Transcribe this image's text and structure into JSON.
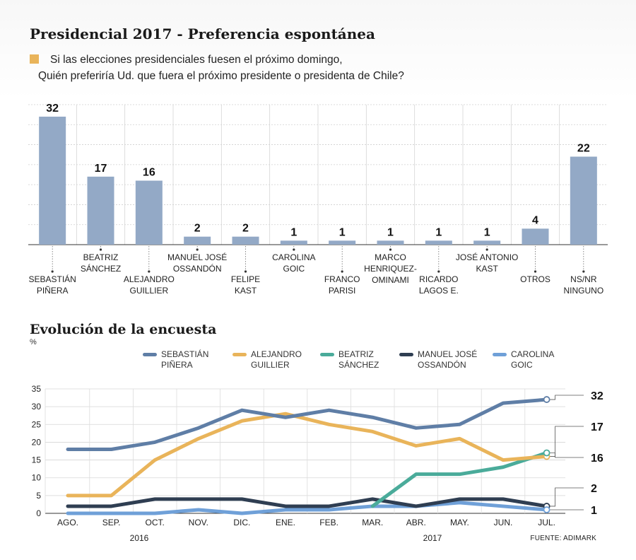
{
  "title": "Presidencial 2017 - Preferencia espontánea",
  "question_line1": "Si las elecciones presidenciales fuesen el próximo domingo,",
  "question_line2": "Quién preferiría Ud. que fuera el próximo presidente o presidenta de Chile?",
  "subtitle": "Evolución de la encuesta",
  "unit": "%",
  "source": "FUENTE: ADIMARK",
  "colors": {
    "bar": "#93a9c6",
    "accent": "#e9b45a",
    "pinera": "#5f7ea6",
    "guillier": "#e9b45a",
    "sanchez": "#4aab9a",
    "ossandon": "#2f3e52",
    "goic": "#6fa0d8"
  },
  "chart_data": [
    {
      "type": "bar",
      "categories": [
        "SEBASTIÁN\nPIÑERA",
        "BEATRIZ\nSÁNCHEZ",
        "ALEJANDRO\nGUILLIER",
        "MANUEL JOSÉ\nOSSANDÓN",
        "FELIPE\nKAST",
        "CAROLINA\nGOIC",
        "FRANCO\nPARISI",
        "MARCO\nHENRIQUEZ-\nOMINAMI",
        "RICARDO\nLAGOS E.",
        "JOSÉ ANTONIO\nKAST",
        "OTROS",
        "NS/NR\nNINGUNO"
      ],
      "values": [
        32,
        17,
        16,
        2,
        2,
        1,
        1,
        1,
        1,
        1,
        4,
        22
      ],
      "ylim": [
        0,
        35
      ],
      "grid": true
    },
    {
      "type": "line",
      "x": [
        "AGO.",
        "SEP.",
        "OCT.",
        "NOV.",
        "DIC.",
        "ENE.",
        "FEB.",
        "MAR.",
        "ABR.",
        "MAY.",
        "JUN.",
        "JUL."
      ],
      "years": [
        "2016",
        "2017"
      ],
      "yticks": [
        "0",
        "5",
        "10",
        "15",
        "20",
        "25",
        "30",
        "35"
      ],
      "ylim": [
        0,
        35
      ],
      "grid": true,
      "series": [
        {
          "name": "SEBASTIÁN\nPIÑERA",
          "key": "pinera",
          "values": [
            18,
            18,
            20,
            24,
            29,
            27,
            29,
            27,
            24,
            25,
            31,
            32
          ]
        },
        {
          "name": "ALEJANDRO\nGUILLIER",
          "key": "guillier",
          "values": [
            5,
            5,
            15,
            21,
            26,
            28,
            25,
            23,
            19,
            21,
            15,
            16
          ]
        },
        {
          "name": "BEATRIZ\nSÁNCHEZ",
          "key": "sanchez",
          "values": [
            null,
            null,
            null,
            null,
            null,
            null,
            null,
            2,
            11,
            11,
            13,
            17
          ]
        },
        {
          "name": "MANUEL JOSÉ\nOSSANDÓN",
          "key": "ossandon",
          "values": [
            2,
            2,
            4,
            4,
            4,
            2,
            2,
            4,
            2,
            4,
            4,
            2
          ]
        },
        {
          "name": "CAROLINA\nGOIC",
          "key": "goic",
          "values": [
            0,
            0,
            0,
            1,
            0,
            1,
            1,
            2,
            2,
            3,
            2,
            1
          ]
        }
      ],
      "end_labels": [
        "32",
        "17",
        "16",
        "2",
        "1"
      ]
    }
  ]
}
